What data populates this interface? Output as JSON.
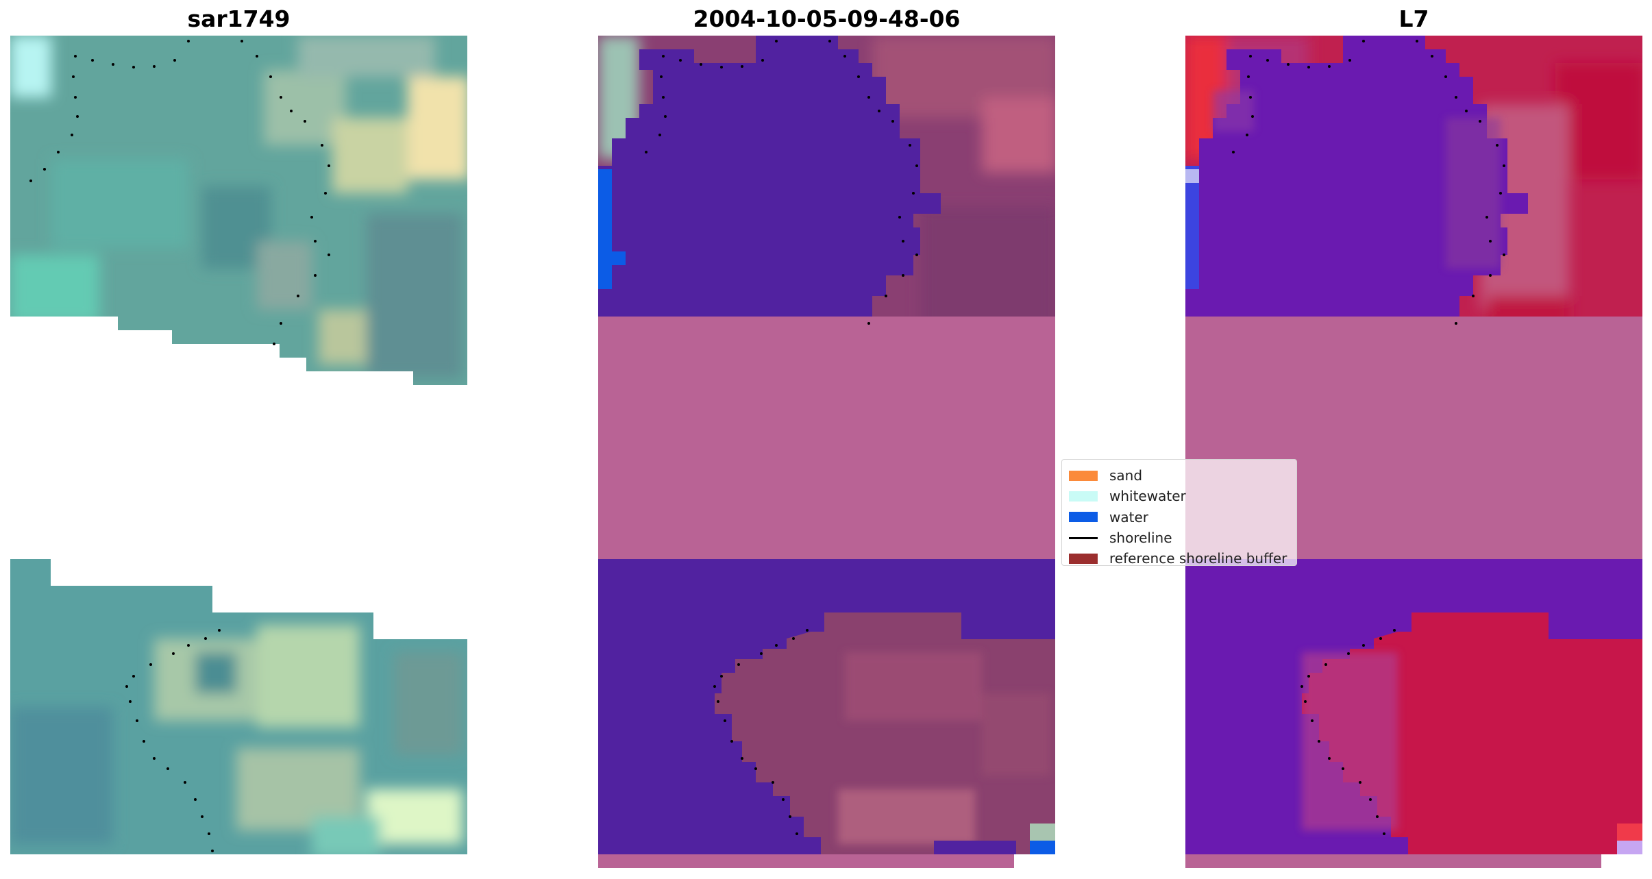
{
  "panels": [
    {
      "title": "sar1749"
    },
    {
      "title": "2004-10-05-09-48-06"
    },
    {
      "title": "L7"
    }
  ],
  "legend": {
    "items": [
      {
        "label": "sand",
        "color": "#fb8a3a",
        "kind": "patch"
      },
      {
        "label": "whitewater",
        "color": "#c9fbf6",
        "kind": "patch"
      },
      {
        "label": "water",
        "color": "#0c5ce6",
        "kind": "patch"
      },
      {
        "label": "shoreline",
        "color": "#000000",
        "kind": "line"
      },
      {
        "label": "reference shoreline buffer",
        "color": "#9b2e2e",
        "kind": "patch"
      }
    ]
  },
  "colors": {
    "background": "#ffffff",
    "classified_water_overlay": "#5122a0",
    "buffer_band": "#b96395",
    "mndwi_low": "#6a0fb0",
    "mndwi_high": "#c0113c"
  }
}
